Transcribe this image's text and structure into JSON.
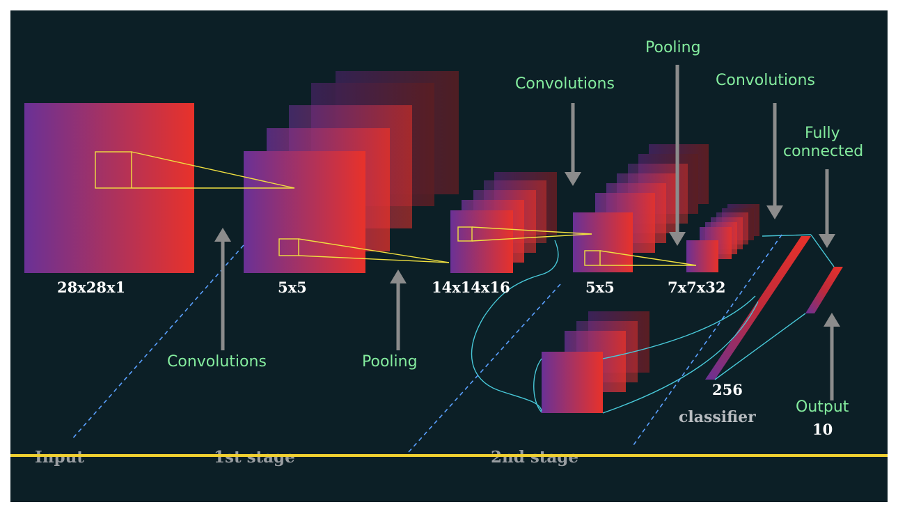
{
  "colors": {
    "background": "#0c1f26",
    "gradient_start": "#6a3196",
    "gradient_end": "#e8322a",
    "arrow": "#8c8c8c",
    "operation_label": "#84ec9e",
    "stage_label": "#9a9ea2",
    "connector": "#48c8d8",
    "baseline": "#f0d030",
    "receptive_field": "#f0e040"
  },
  "dimensions": {
    "input": "28x28x1",
    "kernel1": "5x5",
    "pooled1": "14x14x16",
    "kernel2": "5x5",
    "pooled2": "7x7x32",
    "fc": "256",
    "output_count": "10"
  },
  "operations": {
    "conv1": "Convolutions",
    "pool1": "Pooling",
    "conv2": "Convolutions",
    "pool2": "Pooling",
    "conv3": "Convolutions",
    "fc_line1": "Fully",
    "fc_line2": "connected",
    "output": "Output"
  },
  "labels": {
    "classifier": "classifier"
  },
  "stages": {
    "input": "Input",
    "first": "1st stage",
    "second": "2nd stage"
  }
}
